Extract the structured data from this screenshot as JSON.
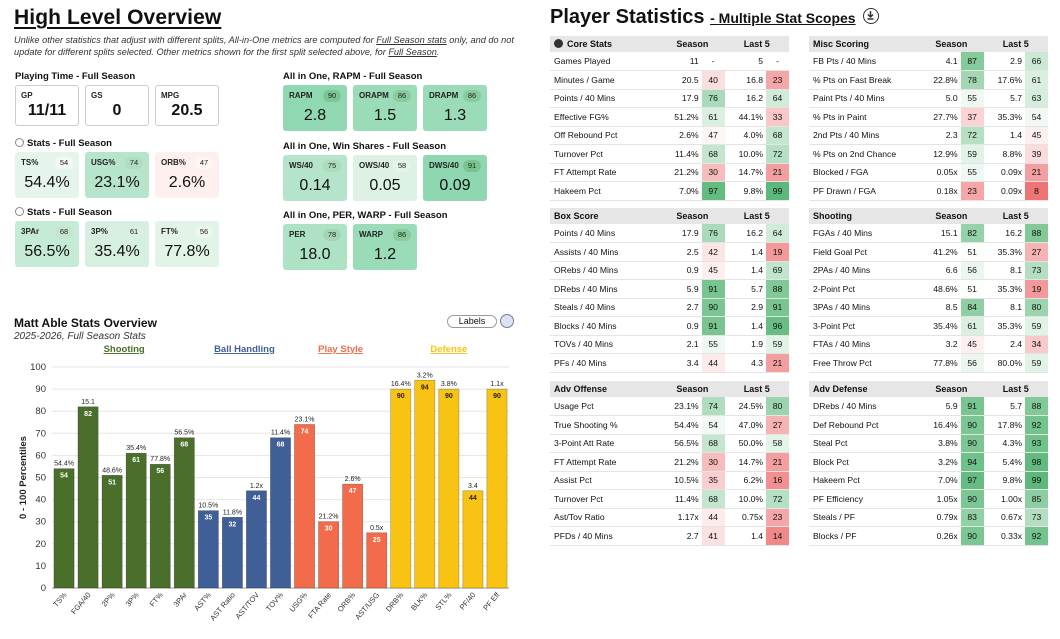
{
  "header": {
    "title": "High Level Overview",
    "desc_1": "Unlike other statistics that adjust with different splits, All-in-One metrics are computed for ",
    "desc_link1": "Full Season stats",
    "desc_2": " only, and do not update for different splits selected. Other metrics shown for the first split selected above, for ",
    "desc_link2": "Full Season",
    "desc_3": "."
  },
  "playing_time": {
    "title": "Playing Time - Full Season",
    "cards": [
      {
        "label": "GP",
        "value": "11/11"
      },
      {
        "label": "GS",
        "value": "0"
      },
      {
        "label": "MPG",
        "value": "20.5"
      }
    ]
  },
  "stats1": {
    "title": "Stats - Full Season",
    "cards": [
      {
        "label": "TS%",
        "pct": "54",
        "value": "54.4%"
      },
      {
        "label": "USG%",
        "pct": "74",
        "value": "23.1%"
      },
      {
        "label": "ORB%",
        "pct": "47",
        "value": "2.6%"
      }
    ]
  },
  "stats2": {
    "title": "Stats - Full Season",
    "cards": [
      {
        "label": "3PAr",
        "pct": "68",
        "value": "56.5%"
      },
      {
        "label": "3P%",
        "pct": "61",
        "value": "35.4%"
      },
      {
        "label": "FT%",
        "pct": "56",
        "value": "77.8%"
      }
    ]
  },
  "rapm": {
    "title": "All in One, RAPM - Full Season",
    "cards": [
      {
        "label": "RAPM",
        "pct": "90",
        "value": "2.8"
      },
      {
        "label": "ORAPM",
        "pct": "86",
        "value": "1.5"
      },
      {
        "label": "DRAPM",
        "pct": "86",
        "value": "1.3"
      }
    ]
  },
  "ws": {
    "title": "All in One, Win Shares - Full Season",
    "cards": [
      {
        "label": "WS/40",
        "pct": "75",
        "value": "0.14"
      },
      {
        "label": "OWS/40",
        "pct": "58",
        "value": "0.05"
      },
      {
        "label": "DWS/40",
        "pct": "91",
        "value": "0.09"
      }
    ]
  },
  "per": {
    "title": "All in One, PER, WARP - Full Season",
    "cards": [
      {
        "label": "PER",
        "pct": "78",
        "value": "18.0"
      },
      {
        "label": "WARP",
        "pct": "86",
        "value": "1.2"
      }
    ]
  },
  "player_stats": {
    "title": "Player Statistics",
    "subtitle": "Multiple Stat Scopes",
    "col_season": "Season",
    "col_last5": "Last 5",
    "tables": {
      "core": {
        "title": "Core Stats",
        "rows": [
          {
            "name": "Games Played",
            "sv": "11",
            "sp": "-",
            "lv": "5",
            "lp": "-"
          },
          {
            "name": "Minutes / Game",
            "sv": "20.5",
            "sp": "40",
            "lv": "16.8",
            "lp": "23"
          },
          {
            "name": "Points / 40 Mins",
            "sv": "17.9",
            "sp": "76",
            "lv": "16.2",
            "lp": "64"
          },
          {
            "name": "Effective FG%",
            "sv": "51.2%",
            "sp": "61",
            "lv": "44.1%",
            "lp": "33"
          },
          {
            "name": "Off Rebound Pct",
            "sv": "2.6%",
            "sp": "47",
            "lv": "4.0%",
            "lp": "68"
          },
          {
            "name": "Turnover Pct",
            "sv": "11.4%",
            "sp": "68",
            "lv": "10.0%",
            "lp": "72"
          },
          {
            "name": "FT Attempt Rate",
            "sv": "21.2%",
            "sp": "30",
            "lv": "14.7%",
            "lp": "21"
          },
          {
            "name": "Hakeem Pct",
            "sv": "7.0%",
            "sp": "97",
            "lv": "9.8%",
            "lp": "99"
          }
        ]
      },
      "misc": {
        "title": "Misc Scoring",
        "rows": [
          {
            "name": "FB Pts / 40 Mins",
            "sv": "4.1",
            "sp": "87",
            "lv": "2.9",
            "lp": "66"
          },
          {
            "name": "% Pts on Fast Break",
            "sv": "22.8%",
            "sp": "78",
            "lv": "17.6%",
            "lp": "61"
          },
          {
            "name": "Paint Pts / 40 Mins",
            "sv": "5.0",
            "sp": "55",
            "lv": "5.7",
            "lp": "63"
          },
          {
            "name": "% Pts in Paint",
            "sv": "27.7%",
            "sp": "37",
            "lv": "35.3%",
            "lp": "54"
          },
          {
            "name": "2nd Pts / 40 Mins",
            "sv": "2.3",
            "sp": "72",
            "lv": "1.4",
            "lp": "45"
          },
          {
            "name": "% Pts on 2nd Chance",
            "sv": "12.9%",
            "sp": "59",
            "lv": "8.8%",
            "lp": "39"
          },
          {
            "name": "Blocked / FGA",
            "sv": "0.05x",
            "sp": "55",
            "lv": "0.09x",
            "lp": "21"
          },
          {
            "name": "PF Drawn / FGA",
            "sv": "0.18x",
            "sp": "23",
            "lv": "0.09x",
            "lp": "8"
          }
        ]
      },
      "box": {
        "title": "Box Score",
        "rows": [
          {
            "name": "Points / 40 Mins",
            "sv": "17.9",
            "sp": "76",
            "lv": "16.2",
            "lp": "64"
          },
          {
            "name": "Assists / 40 Mins",
            "sv": "2.5",
            "sp": "42",
            "lv": "1.4",
            "lp": "19"
          },
          {
            "name": "ORebs / 40 Mins",
            "sv": "0.9",
            "sp": "45",
            "lv": "1.4",
            "lp": "69"
          },
          {
            "name": "DRebs / 40 Mins",
            "sv": "5.9",
            "sp": "91",
            "lv": "5.7",
            "lp": "88"
          },
          {
            "name": "Steals / 40 Mins",
            "sv": "2.7",
            "sp": "90",
            "lv": "2.9",
            "lp": "91"
          },
          {
            "name": "Blocks / 40 Mins",
            "sv": "0.9",
            "sp": "91",
            "lv": "1.4",
            "lp": "96"
          },
          {
            "name": "TOVs / 40 Mins",
            "sv": "2.1",
            "sp": "55",
            "lv": "1.9",
            "lp": "59"
          },
          {
            "name": "PFs / 40 Mins",
            "sv": "3.4",
            "sp": "44",
            "lv": "4.3",
            "lp": "21"
          }
        ]
      },
      "shooting": {
        "title": "Shooting",
        "rows": [
          {
            "name": "FGAs / 40 Mins",
            "sv": "15.1",
            "sp": "82",
            "lv": "16.2",
            "lp": "88"
          },
          {
            "name": "Field Goal Pct",
            "sv": "41.2%",
            "sp": "51",
            "lv": "35.3%",
            "lp": "27"
          },
          {
            "name": "2PAs / 40 Mins",
            "sv": "6.6",
            "sp": "56",
            "lv": "8.1",
            "lp": "73"
          },
          {
            "name": "2-Point Pct",
            "sv": "48.6%",
            "sp": "51",
            "lv": "35.3%",
            "lp": "19"
          },
          {
            "name": "3PAs / 40 Mins",
            "sv": "8.5",
            "sp": "84",
            "lv": "8.1",
            "lp": "80"
          },
          {
            "name": "3-Point Pct",
            "sv": "35.4%",
            "sp": "61",
            "lv": "35.3%",
            "lp": "59"
          },
          {
            "name": "FTAs / 40 Mins",
            "sv": "3.2",
            "sp": "45",
            "lv": "2.4",
            "lp": "34"
          },
          {
            "name": "Free Throw Pct",
            "sv": "77.8%",
            "sp": "56",
            "lv": "80.0%",
            "lp": "59"
          }
        ]
      },
      "advoff": {
        "title": "Adv Offense",
        "rows": [
          {
            "name": "Usage Pct",
            "sv": "23.1%",
            "sp": "74",
            "lv": "24.5%",
            "lp": "80"
          },
          {
            "name": "True Shooting %",
            "sv": "54.4%",
            "sp": "54",
            "lv": "47.0%",
            "lp": "27"
          },
          {
            "name": "3-Point Att Rate",
            "sv": "56.5%",
            "sp": "68",
            "lv": "50.0%",
            "lp": "58"
          },
          {
            "name": "FT Attempt Rate",
            "sv": "21.2%",
            "sp": "30",
            "lv": "14.7%",
            "lp": "21"
          },
          {
            "name": "Assist Pct",
            "sv": "10.5%",
            "sp": "35",
            "lv": "6.2%",
            "lp": "16"
          },
          {
            "name": "Turnover Pct",
            "sv": "11.4%",
            "sp": "68",
            "lv": "10.0%",
            "lp": "72"
          },
          {
            "name": "Ast/Tov Ratio",
            "sv": "1.17x",
            "sp": "44",
            "lv": "0.75x",
            "lp": "23"
          },
          {
            "name": "PFDs / 40 Mins",
            "sv": "2.7",
            "sp": "41",
            "lv": "1.4",
            "lp": "14"
          }
        ]
      },
      "advdef": {
        "title": "Adv Defense",
        "rows": [
          {
            "name": "DRebs / 40 Mins",
            "sv": "5.9",
            "sp": "91",
            "lv": "5.7",
            "lp": "88"
          },
          {
            "name": "Def Rebound Pct",
            "sv": "16.4%",
            "sp": "90",
            "lv": "17.8%",
            "lp": "92"
          },
          {
            "name": "Steal Pct",
            "sv": "3.8%",
            "sp": "90",
            "lv": "4.3%",
            "lp": "93"
          },
          {
            "name": "Block Pct",
            "sv": "3.2%",
            "sp": "94",
            "lv": "5.4%",
            "lp": "98"
          },
          {
            "name": "Hakeem Pct",
            "sv": "7.0%",
            "sp": "97",
            "lv": "9.8%",
            "lp": "99"
          },
          {
            "name": "PF Efficiency",
            "sv": "1.05x",
            "sp": "90",
            "lv": "1.00x",
            "lp": "85"
          },
          {
            "name": "Steals / PF",
            "sv": "0.79x",
            "sp": "83",
            "lv": "0.67x",
            "lp": "73"
          },
          {
            "name": "Blocks / PF",
            "sv": "0.26x",
            "sp": "90",
            "lv": "0.33x",
            "lp": "92"
          }
        ]
      }
    }
  },
  "chart_ui": {
    "labels_button": "Labels"
  },
  "chart_data": {
    "type": "bar",
    "title": "Matt Able Stats Overview",
    "subtitle": "2025-2026, Full Season Stats",
    "ylabel": "0 - 100 Percentiles",
    "ylim": [
      0,
      100
    ],
    "yticks": [
      0,
      10,
      20,
      30,
      40,
      50,
      60,
      70,
      80,
      90,
      100
    ],
    "groups": [
      {
        "name": "Shooting",
        "color": "#4a6f2a"
      },
      {
        "name": "Ball Handling",
        "color": "#3f5f96"
      },
      {
        "name": "Play Style",
        "color": "#f26b4a"
      },
      {
        "name": "Defense",
        "color": "#f8c313"
      }
    ],
    "bars": [
      {
        "category": "TS%",
        "value": 54,
        "label": "54.4%",
        "group": 0
      },
      {
        "category": "FGA/40",
        "value": 82,
        "label": "15.1",
        "group": 0
      },
      {
        "category": "2P%",
        "value": 51,
        "label": "48.6%",
        "group": 0
      },
      {
        "category": "3P%",
        "value": 61,
        "label": "35.4%",
        "group": 0
      },
      {
        "category": "FT%",
        "value": 56,
        "label": "77.8%",
        "group": 0
      },
      {
        "category": "3PAr",
        "value": 68,
        "label": "56.5%",
        "group": 0
      },
      {
        "category": "AST%",
        "value": 35,
        "label": "10.5%",
        "group": 1
      },
      {
        "category": "AST Ratio",
        "value": 32,
        "label": "11.8%",
        "group": 1
      },
      {
        "category": "AST/TOV",
        "value": 44,
        "label": "1.2x",
        "group": 1
      },
      {
        "category": "TOV%",
        "value": 68,
        "label": "11.4%",
        "group": 1
      },
      {
        "category": "USG%",
        "value": 74,
        "label": "23.1%",
        "group": 2
      },
      {
        "category": "FTA Rate",
        "value": 30,
        "label": "21.2%",
        "group": 2
      },
      {
        "category": "ORB%",
        "value": 47,
        "label": "2.6%",
        "group": 2
      },
      {
        "category": "AST/USG",
        "value": 25,
        "label": "0.5x",
        "group": 2
      },
      {
        "category": "DRB%",
        "value": 90,
        "label": "16.4%",
        "group": 3
      },
      {
        "category": "BLK%",
        "value": 94,
        "label": "3.2%",
        "group": 3
      },
      {
        "category": "STL%",
        "value": 90,
        "label": "3.8%",
        "group": 3
      },
      {
        "category": "PF/40",
        "value": 44,
        "label": "3.4",
        "group": 3
      },
      {
        "category": "PF Eff",
        "value": 90,
        "label": "1.1x",
        "group": 3
      }
    ]
  }
}
